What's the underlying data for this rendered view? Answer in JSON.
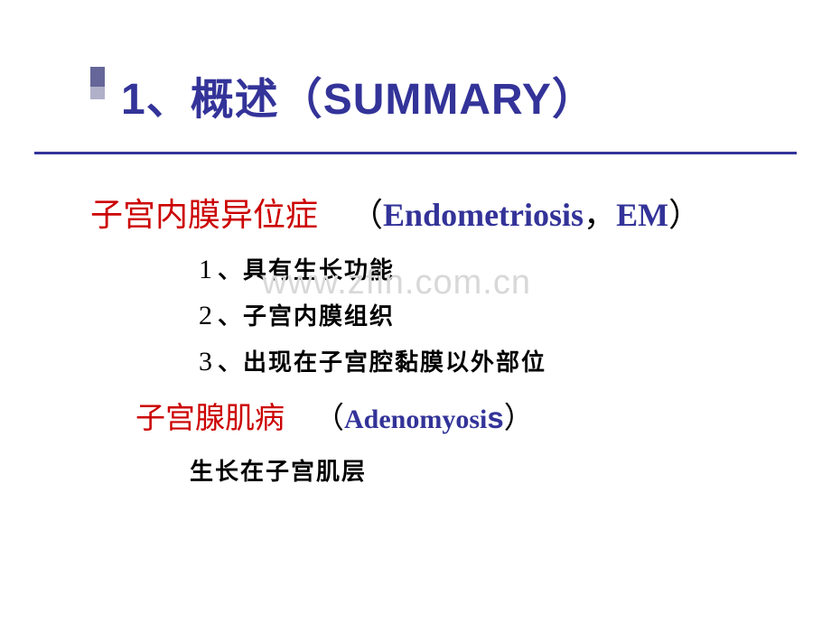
{
  "colors": {
    "title": "#333399",
    "underline": "#333399",
    "red": "#cc0000",
    "blue": "#333399",
    "black": "#000000",
    "watermark": "#d8d8d8",
    "accent_dark": "#666699",
    "accent_light": "#b0b0c8",
    "background": "#ffffff"
  },
  "typography": {
    "title_fontsize": 48,
    "heading_fontsize": 36,
    "subheading_fontsize": 33,
    "list_fontsize": 26,
    "watermark_fontsize": 38
  },
  "slide": {
    "title": "1、概述（SUMMARY）",
    "section1": {
      "heading_cn": "子宫内膜异位症",
      "paren_open": "（",
      "en_term": "Endometriosis",
      "separator": "，",
      "en_abbr": "EM",
      "paren_close": "）",
      "items": [
        {
          "num": "1",
          "sep": "、",
          "text": "具有生长功能"
        },
        {
          "num": "2",
          "sep": "、",
          "text": "子宫内膜组织"
        },
        {
          "num": "3",
          "sep": "、",
          "text": "出现在子宫腔黏膜以外部位"
        }
      ]
    },
    "section2": {
      "heading_cn": "子宫腺肌病",
      "paren_open": "（",
      "en_term": "Adenomyosi",
      "en_tail": "s",
      "paren_close": "）",
      "body": "生长在子宫肌层"
    }
  },
  "watermark": "www.zfin.com.cn"
}
